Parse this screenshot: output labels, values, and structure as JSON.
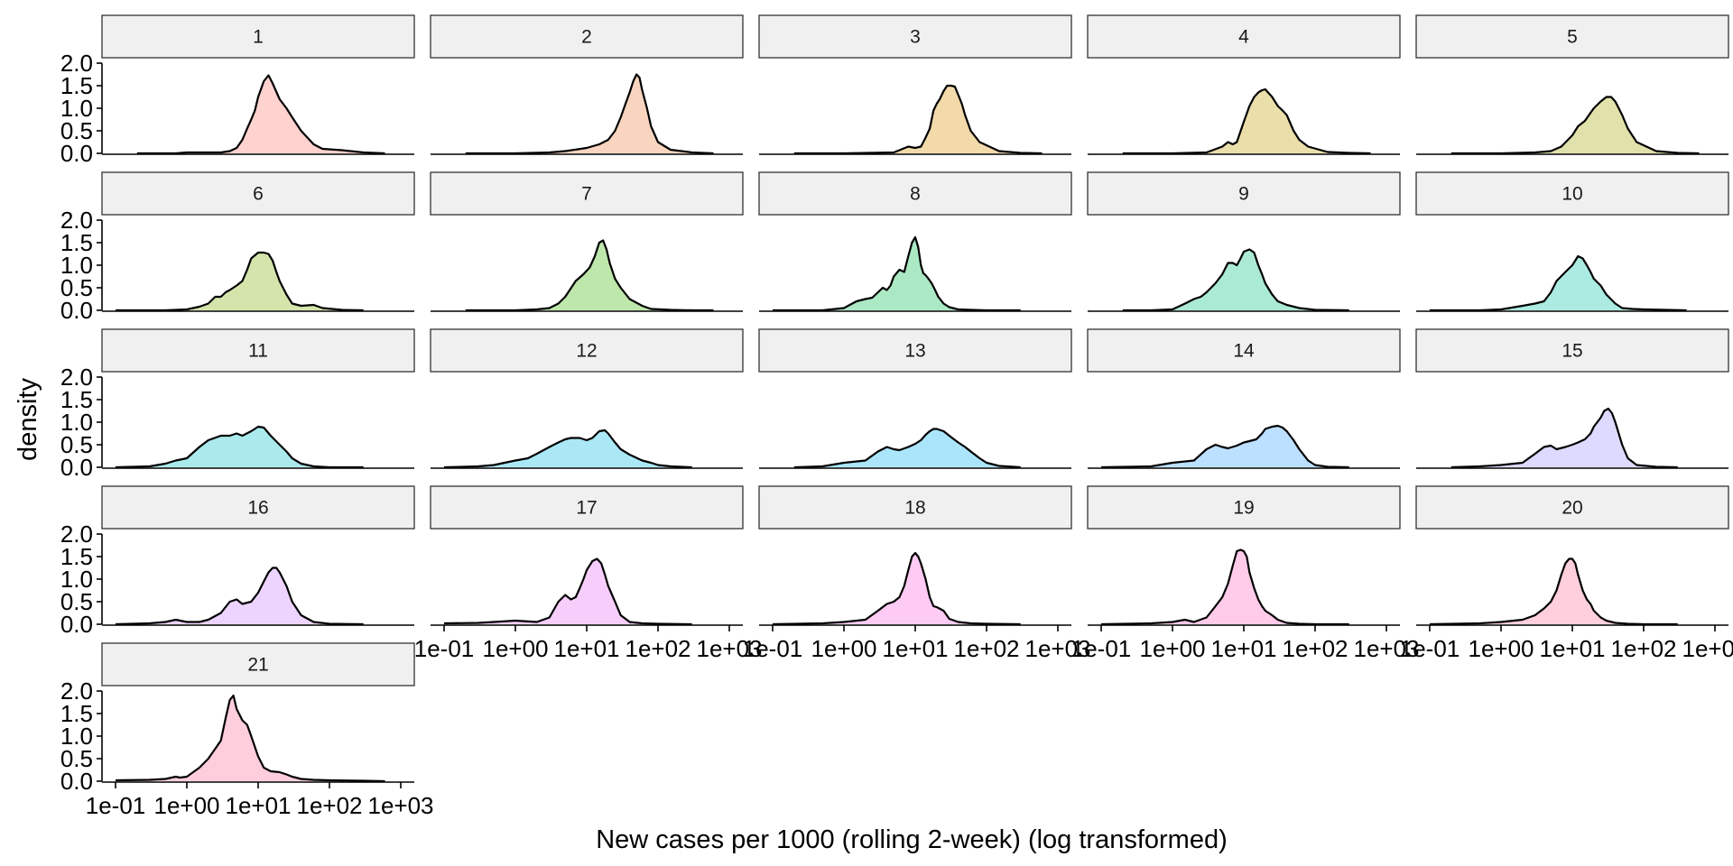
{
  "chart_data": {
    "type": "area",
    "xlabel": "New cases per 1000 (rolling 2-week) (log transformed)",
    "ylabel": "density",
    "x_scale": "log10",
    "xlim": [
      0.1,
      1000
    ],
    "ylim": [
      0,
      2.0
    ],
    "x_tick_labels": [
      "1e-01",
      "1e+00",
      "1e+01",
      "1e+02",
      "1e+03"
    ],
    "y_tick_labels": [
      "0.0",
      "0.5",
      "1.0",
      "1.5",
      "2.0"
    ],
    "grid": false,
    "legend": "none",
    "panels": [
      {
        "name": "1",
        "color": "#f8766d",
        "x": [
          0.2,
          0.7,
          1.0,
          2.0,
          3.0,
          4.0,
          5.0,
          6.0,
          7.0,
          8.0,
          9.0,
          10.0,
          12.0,
          14.0,
          16.0,
          20.0,
          25.0,
          30.0,
          40.0,
          60.0,
          80.0,
          150.0,
          300.0,
          600.0
        ],
        "y": [
          0,
          0,
          0.02,
          0.02,
          0.02,
          0.05,
          0.12,
          0.3,
          0.55,
          0.75,
          0.95,
          1.25,
          1.6,
          1.73,
          1.55,
          1.2,
          1.0,
          0.8,
          0.5,
          0.2,
          0.1,
          0.07,
          0.02,
          0
        ]
      },
      {
        "name": "2",
        "color": "#ed8141",
        "x": [
          0.2,
          1.0,
          3.0,
          5.0,
          10.0,
          15.0,
          20.0,
          25.0,
          30.0,
          35.0,
          40.0,
          45.0,
          50.0,
          55.0,
          60.0,
          70.0,
          80.0,
          100.0,
          150.0,
          300.0,
          600.0
        ],
        "y": [
          0,
          0,
          0.02,
          0.05,
          0.12,
          0.2,
          0.3,
          0.5,
          0.8,
          1.1,
          1.35,
          1.6,
          1.75,
          1.68,
          1.4,
          1.0,
          0.6,
          0.25,
          0.08,
          0.02,
          0
        ]
      },
      {
        "name": "3",
        "color": "#d89000",
        "x": [
          0.2,
          1.0,
          5.0,
          8.0,
          10.0,
          12.0,
          14.0,
          16.0,
          18.0,
          20.0,
          22.0,
          25.0,
          28.0,
          32.0,
          36.0,
          40.0,
          45.0,
          50.0,
          60.0,
          80.0,
          150.0,
          300.0,
          600.0
        ],
        "y": [
          0,
          0,
          0.02,
          0.15,
          0.12,
          0.15,
          0.35,
          0.55,
          0.95,
          1.1,
          1.2,
          1.38,
          1.5,
          1.5,
          1.48,
          1.3,
          1.1,
          0.85,
          0.5,
          0.25,
          0.05,
          0.01,
          0
        ]
      },
      {
        "name": "4",
        "color": "#c09b00",
        "x": [
          0.2,
          1.0,
          3.0,
          5.0,
          6.0,
          7.0,
          8.0,
          10.0,
          12.0,
          14.0,
          16.0,
          18.0,
          20.0,
          25.0,
          30.0,
          35.0,
          40.0,
          50.0,
          60.0,
          80.0,
          150.0,
          300.0,
          600.0
        ],
        "y": [
          0,
          0,
          0.02,
          0.15,
          0.25,
          0.2,
          0.25,
          0.7,
          1.05,
          1.25,
          1.35,
          1.4,
          1.42,
          1.25,
          1.05,
          0.95,
          0.85,
          0.5,
          0.3,
          0.15,
          0.03,
          0.01,
          0
        ]
      },
      {
        "name": "5",
        "color": "#a3a500",
        "x": [
          0.2,
          1.0,
          3.0,
          5.0,
          7.0,
          10.0,
          12.0,
          15.0,
          18.0,
          20.0,
          25.0,
          30.0,
          35.0,
          40.0,
          50.0,
          60.0,
          80.0,
          150.0,
          300.0,
          600.0
        ],
        "y": [
          0,
          0,
          0.02,
          0.05,
          0.15,
          0.4,
          0.6,
          0.72,
          0.9,
          1.0,
          1.15,
          1.25,
          1.25,
          1.15,
          0.85,
          0.55,
          0.25,
          0.05,
          0.01,
          0
        ]
      },
      {
        "name": "6",
        "color": "#7cae00",
        "x": [
          0.1,
          0.5,
          1.0,
          1.5,
          2.0,
          2.5,
          3.0,
          3.5,
          4.0,
          5.0,
          6.0,
          7.0,
          8.0,
          10.0,
          12.0,
          14.0,
          16.0,
          18.0,
          20.0,
          25.0,
          30.0,
          40.0,
          60.0,
          80.0,
          150.0,
          300.0
        ],
        "y": [
          0,
          0,
          0.02,
          0.08,
          0.15,
          0.3,
          0.3,
          0.4,
          0.45,
          0.55,
          0.65,
          0.9,
          1.15,
          1.28,
          1.28,
          1.25,
          1.1,
          0.85,
          0.65,
          0.35,
          0.15,
          0.1,
          0.12,
          0.05,
          0.01,
          0
        ]
      },
      {
        "name": "7",
        "color": "#39b600",
        "x": [
          0.2,
          1.0,
          2.0,
          3.0,
          4.0,
          5.0,
          7.0,
          9.0,
          11.0,
          13.0,
          15.0,
          17.0,
          19.0,
          21.0,
          25.0,
          30.0,
          40.0,
          60.0,
          80.0,
          150.0,
          300.0,
          600.0
        ],
        "y": [
          0,
          0,
          0.02,
          0.05,
          0.15,
          0.3,
          0.65,
          0.8,
          0.95,
          1.2,
          1.5,
          1.55,
          1.35,
          1.05,
          0.7,
          0.5,
          0.25,
          0.1,
          0.03,
          0.01,
          0,
          0
        ]
      },
      {
        "name": "8",
        "color": "#00bb4e",
        "x": [
          0.1,
          0.5,
          1.0,
          1.5,
          2.0,
          2.5,
          3.0,
          3.5,
          4.0,
          4.5,
          5.0,
          6.0,
          7.0,
          8.0,
          9.0,
          10.0,
          11.0,
          12.0,
          13.0,
          14.0,
          15.0,
          17.0,
          19.0,
          21.0,
          25.0,
          30.0,
          40.0,
          60.0,
          100.0,
          300.0
        ],
        "y": [
          0,
          0,
          0.05,
          0.2,
          0.25,
          0.28,
          0.4,
          0.5,
          0.45,
          0.55,
          0.75,
          0.9,
          0.85,
          1.2,
          1.5,
          1.62,
          1.4,
          1.0,
          0.82,
          0.78,
          0.72,
          0.6,
          0.45,
          0.3,
          0.15,
          0.07,
          0.02,
          0.01,
          0,
          0
        ]
      },
      {
        "name": "9",
        "color": "#00bf7d",
        "x": [
          0.2,
          0.5,
          1.0,
          1.5,
          2.0,
          2.5,
          3.0,
          4.0,
          5.0,
          6.0,
          7.0,
          8.0,
          9.0,
          10.0,
          12.0,
          14.0,
          16.0,
          18.0,
          20.0,
          25.0,
          30.0,
          40.0,
          60.0,
          100.0,
          300.0
        ],
        "y": [
          0,
          0,
          0.02,
          0.15,
          0.25,
          0.3,
          0.4,
          0.6,
          0.8,
          1.05,
          1.05,
          1.0,
          1.15,
          1.3,
          1.35,
          1.28,
          1.0,
          0.8,
          0.6,
          0.35,
          0.2,
          0.12,
          0.05,
          0.01,
          0
        ]
      },
      {
        "name": "10",
        "color": "#00c1a3",
        "x": [
          0.1,
          0.5,
          1.0,
          2.0,
          3.0,
          4.0,
          5.0,
          6.0,
          8.0,
          10.0,
          12.0,
          14.0,
          16.0,
          18.0,
          20.0,
          25.0,
          30.0,
          40.0,
          50.0,
          70.0,
          100.0,
          200.0,
          400.0
        ],
        "y": [
          0,
          0,
          0.02,
          0.1,
          0.15,
          0.2,
          0.4,
          0.65,
          0.85,
          1.0,
          1.2,
          1.15,
          1.0,
          0.85,
          0.7,
          0.55,
          0.35,
          0.15,
          0.05,
          0.03,
          0.02,
          0.01,
          0
        ]
      },
      {
        "name": "11",
        "color": "#00bfc4",
        "x": [
          0.1,
          0.3,
          0.5,
          0.7,
          1.0,
          1.5,
          2.0,
          3.0,
          4.0,
          5.0,
          6.0,
          8.0,
          10.0,
          12.0,
          15.0,
          20.0,
          25.0,
          30.0,
          40.0,
          60.0,
          100.0,
          300.0
        ],
        "y": [
          0,
          0.02,
          0.08,
          0.15,
          0.2,
          0.45,
          0.6,
          0.7,
          0.7,
          0.75,
          0.7,
          0.8,
          0.9,
          0.88,
          0.7,
          0.5,
          0.35,
          0.2,
          0.08,
          0.02,
          0,
          0
        ]
      },
      {
        "name": "12",
        "color": "#00bae0",
        "x": [
          0.1,
          0.3,
          0.5,
          1.0,
          1.5,
          2.0,
          3.0,
          4.0,
          5.0,
          6.0,
          8.0,
          10.0,
          12.0,
          15.0,
          18.0,
          20.0,
          25.0,
          30.0,
          40.0,
          60.0,
          80.0,
          100.0,
          150.0,
          300.0
        ],
        "y": [
          0,
          0.02,
          0.05,
          0.15,
          0.2,
          0.3,
          0.45,
          0.55,
          0.62,
          0.65,
          0.65,
          0.6,
          0.65,
          0.8,
          0.82,
          0.75,
          0.55,
          0.4,
          0.28,
          0.15,
          0.1,
          0.05,
          0.02,
          0
        ]
      },
      {
        "name": "13",
        "color": "#00b0f6",
        "x": [
          0.2,
          0.5,
          1.0,
          2.0,
          3.0,
          4.0,
          5.0,
          6.0,
          8.0,
          10.0,
          12.0,
          14.0,
          16.0,
          18.0,
          20.0,
          25.0,
          30.0,
          40.0,
          50.0,
          60.0,
          80.0,
          100.0,
          150.0,
          300.0
        ],
        "y": [
          0,
          0.02,
          0.1,
          0.15,
          0.35,
          0.45,
          0.4,
          0.38,
          0.45,
          0.52,
          0.6,
          0.72,
          0.8,
          0.85,
          0.85,
          0.8,
          0.7,
          0.55,
          0.45,
          0.35,
          0.2,
          0.1,
          0.03,
          0
        ]
      },
      {
        "name": "14",
        "color": "#35a2ff",
        "x": [
          0.1,
          0.5,
          1.0,
          2.0,
          3.0,
          4.0,
          5.0,
          6.0,
          8.0,
          10.0,
          12.0,
          15.0,
          18.0,
          20.0,
          25.0,
          30.0,
          35.0,
          40.0,
          50.0,
          60.0,
          80.0,
          100.0,
          150.0,
          300.0
        ],
        "y": [
          0,
          0.02,
          0.1,
          0.15,
          0.4,
          0.5,
          0.45,
          0.42,
          0.48,
          0.55,
          0.58,
          0.62,
          0.75,
          0.85,
          0.9,
          0.92,
          0.88,
          0.8,
          0.6,
          0.4,
          0.15,
          0.05,
          0.01,
          0
        ]
      },
      {
        "name": "15",
        "color": "#9590ff",
        "x": [
          0.2,
          0.5,
          1.0,
          2.0,
          3.0,
          4.0,
          5.0,
          6.0,
          8.0,
          10.0,
          12.0,
          15.0,
          18.0,
          20.0,
          25.0,
          28.0,
          32.0,
          36.0,
          40.0,
          50.0,
          60.0,
          80.0,
          150.0,
          300.0
        ],
        "y": [
          0,
          0.02,
          0.05,
          0.1,
          0.3,
          0.45,
          0.48,
          0.4,
          0.45,
          0.5,
          0.55,
          0.62,
          0.75,
          0.9,
          1.1,
          1.25,
          1.3,
          1.2,
          1.0,
          0.5,
          0.2,
          0.05,
          0.01,
          0
        ]
      },
      {
        "name": "16",
        "color": "#c77cff",
        "x": [
          0.1,
          0.3,
          0.5,
          0.7,
          1.0,
          1.5,
          2.0,
          3.0,
          4.0,
          5.0,
          6.0,
          8.0,
          10.0,
          12.0,
          14.0,
          16.0,
          18.0,
          20.0,
          25.0,
          30.0,
          40.0,
          60.0,
          100.0,
          300.0
        ],
        "y": [
          0,
          0.02,
          0.05,
          0.1,
          0.05,
          0.05,
          0.1,
          0.25,
          0.5,
          0.55,
          0.45,
          0.5,
          0.7,
          0.95,
          1.15,
          1.25,
          1.25,
          1.15,
          0.85,
          0.5,
          0.2,
          0.05,
          0.01,
          0
        ]
      },
      {
        "name": "17",
        "color": "#e76bf3",
        "x": [
          0.1,
          0.3,
          0.5,
          1.0,
          2.0,
          3.0,
          4.0,
          5.0,
          6.0,
          7.0,
          8.0,
          9.0,
          10.0,
          12.0,
          14.0,
          16.0,
          18.0,
          20.0,
          25.0,
          30.0,
          40.0,
          60.0,
          100.0,
          300.0
        ],
        "y": [
          0.02,
          0.03,
          0.05,
          0.08,
          0.05,
          0.15,
          0.5,
          0.65,
          0.55,
          0.6,
          0.8,
          1.0,
          1.2,
          1.4,
          1.45,
          1.35,
          1.1,
          0.85,
          0.5,
          0.2,
          0.05,
          0.02,
          0.01,
          0
        ]
      },
      {
        "name": "18",
        "color": "#fa62db",
        "x": [
          0.1,
          0.5,
          1.0,
          2.0,
          3.0,
          4.0,
          5.0,
          6.0,
          7.0,
          8.0,
          9.0,
          10.0,
          11.0,
          12.0,
          14.0,
          16.0,
          18.0,
          20.0,
          25.0,
          30.0,
          40.0,
          60.0,
          100.0,
          300.0
        ],
        "y": [
          0,
          0.02,
          0.05,
          0.1,
          0.3,
          0.45,
          0.5,
          0.6,
          0.85,
          1.2,
          1.5,
          1.58,
          1.5,
          1.35,
          1.0,
          0.6,
          0.4,
          0.38,
          0.3,
          0.12,
          0.05,
          0.02,
          0.01,
          0
        ]
      },
      {
        "name": "19",
        "color": "#ff62bc",
        "x": [
          0.1,
          0.5,
          1.0,
          1.5,
          2.0,
          3.0,
          4.0,
          5.0,
          6.0,
          7.0,
          8.0,
          9.0,
          10.0,
          11.0,
          12.0,
          14.0,
          16.0,
          18.0,
          20.0,
          25.0,
          30.0,
          40.0,
          60.0,
          100.0,
          300.0
        ],
        "y": [
          0,
          0.02,
          0.05,
          0.1,
          0.05,
          0.15,
          0.4,
          0.6,
          0.9,
          1.3,
          1.62,
          1.65,
          1.62,
          1.5,
          1.15,
          0.8,
          0.55,
          0.4,
          0.3,
          0.2,
          0.1,
          0.03,
          0.01,
          0,
          0
        ]
      },
      {
        "name": "20",
        "color": "#ff6c91",
        "x": [
          0.1,
          0.5,
          1.0,
          2.0,
          3.0,
          4.0,
          5.0,
          6.0,
          7.0,
          8.0,
          9.0,
          10.0,
          11.0,
          12.0,
          14.0,
          16.0,
          18.0,
          20.0,
          25.0,
          30.0,
          40.0,
          60.0,
          100.0,
          300.0
        ],
        "y": [
          0,
          0.02,
          0.05,
          0.1,
          0.2,
          0.35,
          0.5,
          0.75,
          1.1,
          1.35,
          1.45,
          1.45,
          1.35,
          1.1,
          0.75,
          0.55,
          0.45,
          0.3,
          0.15,
          0.08,
          0.03,
          0.01,
          0,
          0
        ]
      },
      {
        "name": "21",
        "color": "#ff6b96",
        "x": [
          0.1,
          0.3,
          0.5,
          0.7,
          0.8,
          1.0,
          1.5,
          2.0,
          3.0,
          3.5,
          4.0,
          4.5,
          5.0,
          6.0,
          7.0,
          8.0,
          10.0,
          12.0,
          15.0,
          20.0,
          25.0,
          30.0,
          40.0,
          60.0,
          100.0,
          300.0,
          600.0
        ],
        "y": [
          0.02,
          0.03,
          0.05,
          0.1,
          0.08,
          0.1,
          0.3,
          0.5,
          0.9,
          1.4,
          1.8,
          1.9,
          1.6,
          1.35,
          1.25,
          1.0,
          0.55,
          0.3,
          0.22,
          0.2,
          0.15,
          0.1,
          0.05,
          0.03,
          0.02,
          0.01,
          0
        ]
      }
    ]
  }
}
